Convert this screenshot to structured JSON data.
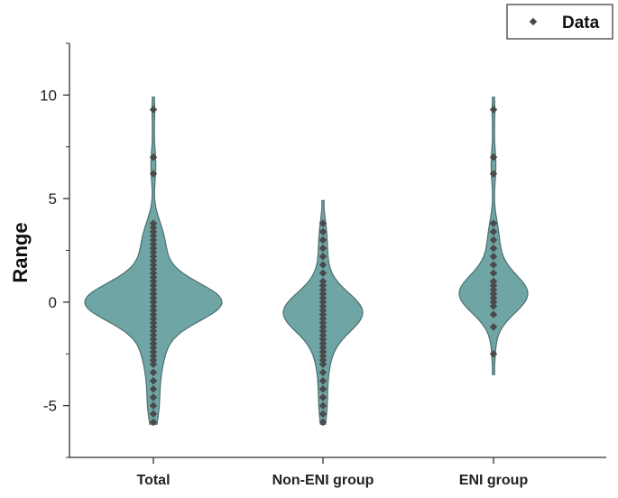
{
  "chart_data": {
    "type": "violin",
    "title": "",
    "xlabel": "",
    "ylabel": "Range",
    "ylim": [
      -7.5,
      12.5
    ],
    "yticks": [
      "-5",
      "0",
      "5",
      "10"
    ],
    "categories": [
      "Total",
      "Non-ENI group",
      "ENI group"
    ],
    "legend": {
      "position": "top-right",
      "label": "Data"
    },
    "colors": {
      "violin_fill": "#6fa5a4",
      "violin_stroke": "#4e6f70",
      "point": "#4a4a4a"
    },
    "series": [
      {
        "category": "Total",
        "min": -5.9,
        "max": 9.9,
        "points": [
          9.3,
          7.0,
          6.2,
          3.8,
          3.6,
          3.4,
          3.2,
          3.0,
          2.8,
          2.6,
          2.4,
          2.2,
          2.0,
          1.8,
          1.6,
          1.4,
          1.2,
          1.0,
          0.8,
          0.6,
          0.4,
          0.2,
          0.0,
          -0.2,
          -0.4,
          -0.6,
          -0.8,
          -1.0,
          -1.2,
          -1.4,
          -1.6,
          -1.8,
          -2.0,
          -2.2,
          -2.4,
          -2.6,
          -2.8,
          -3.0,
          -3.4,
          -3.8,
          -4.2,
          -4.6,
          -5.0,
          -5.4,
          -5.8
        ]
      },
      {
        "category": "Non-ENI group",
        "min": -5.9,
        "max": 4.9,
        "points": [
          3.8,
          3.4,
          3.0,
          2.6,
          2.2,
          1.8,
          1.4,
          1.0,
          0.8,
          0.6,
          0.4,
          0.2,
          0.0,
          -0.2,
          -0.4,
          -0.6,
          -0.8,
          -1.0,
          -1.2,
          -1.4,
          -1.6,
          -1.8,
          -2.0,
          -2.2,
          -2.4,
          -2.6,
          -2.8,
          -3.0,
          -3.4,
          -3.8,
          -4.2,
          -4.6,
          -5.0,
          -5.4,
          -5.8
        ]
      },
      {
        "category": "ENI group",
        "min": -3.5,
        "max": 9.9,
        "points": [
          9.3,
          7.0,
          6.2,
          3.8,
          3.4,
          3.0,
          2.6,
          2.2,
          1.8,
          1.4,
          1.0,
          0.8,
          0.6,
          0.4,
          0.2,
          0.0,
          -0.2,
          -0.6,
          -1.2,
          -2.5
        ]
      }
    ]
  }
}
